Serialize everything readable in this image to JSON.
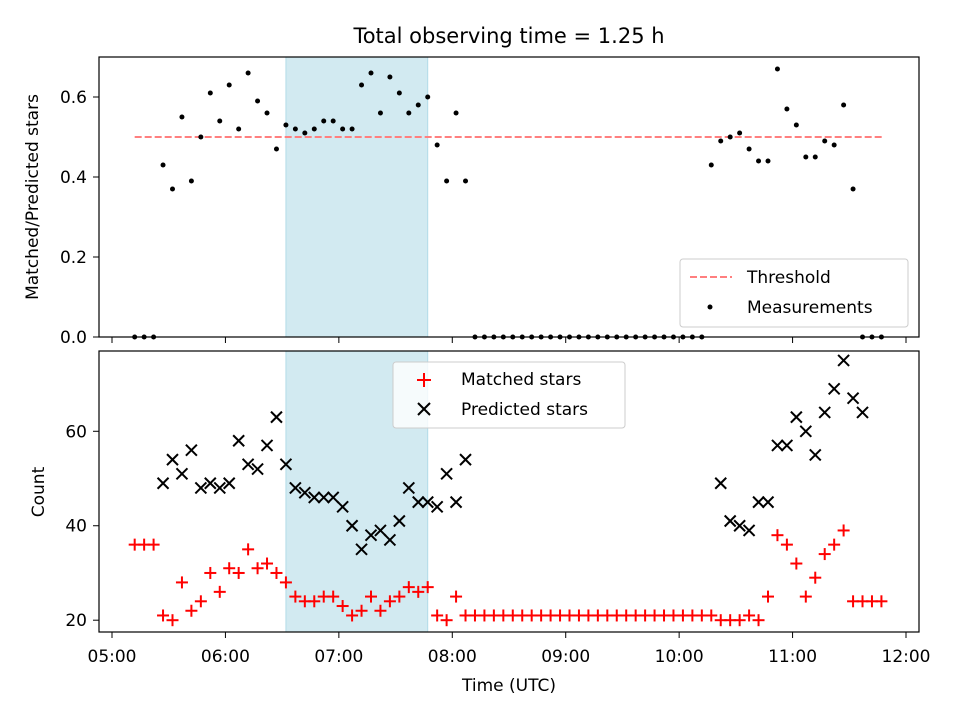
{
  "figure": {
    "title": "Total observing time = 1.25 h"
  },
  "colors": {
    "shade": "#add8e6",
    "threshold": "#ff7f7f",
    "measurements": "#000000",
    "matched": "#ff0000",
    "predicted": "#000000"
  },
  "chart_data": [
    {
      "type": "scatter",
      "ylabel": "Matched/Predicted stars",
      "ylim": [
        0,
        0.7
      ],
      "yticks": [
        "0.0",
        "0.2",
        "0.4",
        "0.6"
      ],
      "xlim": [
        "05:00",
        "12:00"
      ],
      "shaded_interval": [
        "06:32",
        "07:47"
      ],
      "legend_position": "lower-right",
      "series": [
        {
          "name": "Threshold",
          "kind": "dashed-line",
          "x": [
            "05:12",
            "11:48"
          ],
          "values": [
            0.5,
            0.5
          ]
        },
        {
          "name": "Measurements",
          "kind": "dots",
          "x": [
            "05:12",
            "05:17",
            "05:22",
            "05:27",
            "05:32",
            "05:37",
            "05:42",
            "05:47",
            "05:52",
            "05:57",
            "06:02",
            "06:07",
            "06:12",
            "06:17",
            "06:22",
            "06:27",
            "06:32",
            "06:37",
            "06:42",
            "06:47",
            "06:52",
            "06:57",
            "07:02",
            "07:07",
            "07:12",
            "07:17",
            "07:22",
            "07:27",
            "07:32",
            "07:37",
            "07:42",
            "07:47",
            "07:52",
            "07:57",
            "08:02",
            "08:07",
            "08:12",
            "08:17",
            "08:22",
            "08:27",
            "08:32",
            "08:37",
            "08:42",
            "08:47",
            "08:52",
            "08:57",
            "09:02",
            "09:07",
            "09:12",
            "09:17",
            "09:22",
            "09:27",
            "09:32",
            "09:37",
            "09:42",
            "09:47",
            "09:52",
            "09:57",
            "10:02",
            "10:07",
            "10:12",
            "10:17",
            "10:22",
            "10:27",
            "10:32",
            "10:37",
            "10:42",
            "10:47",
            "10:52",
            "10:57",
            "11:02",
            "11:07",
            "11:12",
            "11:17",
            "11:22",
            "11:27",
            "11:32",
            "11:37",
            "11:42",
            "11:47"
          ],
          "values": [
            0,
            0,
            0,
            0.43,
            0.37,
            0.55,
            0.39,
            0.5,
            0.61,
            0.54,
            0.63,
            0.52,
            0.66,
            0.59,
            0.56,
            0.47,
            0.53,
            0.52,
            0.51,
            0.52,
            0.54,
            0.54,
            0.52,
            0.52,
            0.63,
            0.66,
            0.56,
            0.65,
            0.61,
            0.56,
            0.58,
            0.6,
            0.48,
            0.39,
            0.56,
            0.39,
            0,
            0,
            0,
            0,
            0,
            0,
            0,
            0,
            0,
            0,
            0,
            0,
            0,
            0,
            0,
            0,
            0,
            0,
            0,
            0,
            0,
            0,
            0,
            0,
            0,
            0.43,
            0.49,
            0.5,
            0.51,
            0.47,
            0.44,
            0.44,
            0.67,
            0.57,
            0.53,
            0.45,
            0.45,
            0.49,
            0.48,
            0.58,
            0.37,
            0,
            0,
            0
          ]
        }
      ]
    },
    {
      "type": "scatter",
      "ylabel": "Count",
      "xlabel": "Time (UTC)",
      "ylim": [
        17.5,
        77
      ],
      "yticks": [
        "20",
        "40",
        "60"
      ],
      "xticks": [
        "05:00",
        "06:00",
        "07:00",
        "08:00",
        "09:00",
        "10:00",
        "11:00",
        "12:00"
      ],
      "shaded_interval": [
        "06:32",
        "07:47"
      ],
      "legend_position": "upper-center",
      "series": [
        {
          "name": "Matched stars",
          "marker": "+",
          "x": [
            "05:12",
            "05:17",
            "05:22",
            "05:27",
            "05:32",
            "05:37",
            "05:42",
            "05:47",
            "05:52",
            "05:57",
            "06:02",
            "06:07",
            "06:12",
            "06:17",
            "06:22",
            "06:27",
            "06:32",
            "06:37",
            "06:42",
            "06:47",
            "06:52",
            "06:57",
            "07:02",
            "07:07",
            "07:12",
            "07:17",
            "07:22",
            "07:27",
            "07:32",
            "07:37",
            "07:42",
            "07:47",
            "07:52",
            "07:57",
            "08:02",
            "08:07",
            "08:12",
            "08:17",
            "08:22",
            "08:27",
            "08:32",
            "08:37",
            "08:42",
            "08:47",
            "08:52",
            "08:57",
            "09:02",
            "09:07",
            "09:12",
            "09:17",
            "09:22",
            "09:27",
            "09:32",
            "09:37",
            "09:42",
            "09:47",
            "09:52",
            "09:57",
            "10:02",
            "10:07",
            "10:12",
            "10:17",
            "10:22",
            "10:27",
            "10:32",
            "10:37",
            "10:42",
            "10:47",
            "10:52",
            "10:57",
            "11:02",
            "11:07",
            "11:12",
            "11:17",
            "11:22",
            "11:27",
            "11:32",
            "11:37",
            "11:42",
            "11:47"
          ],
          "values": [
            36,
            36,
            36,
            21,
            20,
            28,
            22,
            24,
            30,
            26,
            31,
            30,
            35,
            31,
            32,
            30,
            28,
            25,
            24,
            24,
            25,
            25,
            23,
            21,
            22,
            25,
            22,
            24,
            25,
            27,
            26,
            27,
            21,
            20,
            25,
            21,
            21,
            21,
            21,
            21,
            21,
            21,
            21,
            21,
            21,
            21,
            21,
            21,
            21,
            21,
            21,
            21,
            21,
            21,
            21,
            21,
            21,
            21,
            21,
            21,
            21,
            21,
            20,
            20,
            20,
            21,
            20,
            25,
            38,
            36,
            32,
            25,
            29,
            34,
            36,
            39,
            24,
            24,
            24,
            24
          ]
        },
        {
          "name": "Predicted stars",
          "marker": "x",
          "x": [
            "05:27",
            "05:32",
            "05:37",
            "05:42",
            "05:47",
            "05:52",
            "05:57",
            "06:02",
            "06:07",
            "06:12",
            "06:17",
            "06:22",
            "06:27",
            "06:32",
            "06:37",
            "06:42",
            "06:47",
            "06:52",
            "06:57",
            "07:02",
            "07:07",
            "07:12",
            "07:17",
            "07:22",
            "07:27",
            "07:32",
            "07:37",
            "07:42",
            "07:47",
            "07:52",
            "07:57",
            "08:02",
            "08:07",
            "10:22",
            "10:27",
            "10:32",
            "10:37",
            "10:42",
            "10:47",
            "10:52",
            "10:57",
            "11:02",
            "11:07",
            "11:12",
            "11:17",
            "11:22",
            "11:27",
            "11:32",
            "11:37"
          ],
          "values": [
            49,
            54,
            51,
            56,
            48,
            49,
            48,
            49,
            58,
            53,
            52,
            57,
            63,
            53,
            48,
            47,
            46,
            46,
            46,
            44,
            40,
            35,
            38,
            39,
            37,
            41,
            48,
            45,
            45,
            44,
            51,
            45,
            54,
            49,
            41,
            40,
            39,
            45,
            45,
            57,
            57,
            63,
            60,
            55,
            64,
            69,
            75,
            67,
            64
          ]
        }
      ]
    }
  ]
}
